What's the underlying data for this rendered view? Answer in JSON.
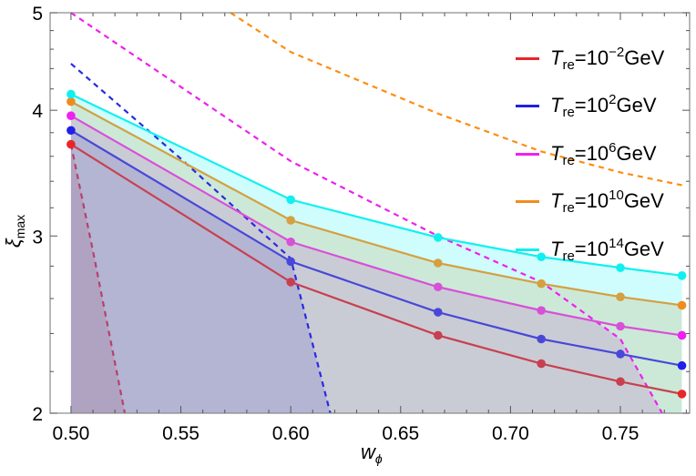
{
  "chart_data": {
    "type": "line",
    "xlabel": {
      "main": "w",
      "sub": "ϕ"
    },
    "ylabel": {
      "main": "ξ",
      "sub": "max"
    },
    "xlim": [
      0.4905,
      0.7815
    ],
    "ylim": [
      2,
      5
    ],
    "y_scale": "log",
    "grid": false,
    "legend_position": "top-right",
    "x_ticks": [
      "0.50",
      "0.55",
      "0.60",
      "0.65",
      "0.70",
      "0.75"
    ],
    "y_ticks": [
      "2",
      "3",
      "4",
      "5"
    ],
    "x": [
      0.5,
      0.6,
      0.667,
      0.714,
      0.75,
      0.778
    ],
    "series": [
      {
        "name": "T_re=10^-2 GeV",
        "label": {
          "t": "T",
          "sub": "re",
          "eq": "=10",
          "exp": "−2",
          "unit": "GeV"
        },
        "color": "#e8262a",
        "line_color": "#c8404f",
        "dash_color": "#b8406a",
        "values": [
          3.7,
          2.7,
          2.39,
          2.24,
          2.15,
          2.09
        ],
        "bound": {
          "x": [
            0.5,
            0.5104,
            0.5245
          ],
          "y": [
            3.7,
            2.87,
            2.0
          ]
        }
      },
      {
        "name": "T_re=10^2 GeV",
        "label": {
          "t": "T",
          "sub": "re",
          "eq": "=10",
          "exp": "2",
          "unit": "GeV"
        },
        "color": "#2020e8",
        "line_color": "#4848d8",
        "dash_color": "#2a2ae0",
        "values": [
          3.82,
          2.83,
          2.52,
          2.37,
          2.29,
          2.23
        ],
        "bound": {
          "x": [
            0.5,
            0.55,
            0.6,
            0.618
          ],
          "y": [
            4.45,
            3.58,
            2.85,
            2.0
          ]
        }
      },
      {
        "name": "T_re=10^6 GeV",
        "label": {
          "t": "T",
          "sub": "re",
          "eq": "=10",
          "exp": "6",
          "unit": "GeV"
        },
        "color": "#f020f0",
        "line_color": "#d850d8",
        "dash_color": "#ee20ee",
        "values": [
          3.95,
          2.96,
          2.67,
          2.53,
          2.44,
          2.39
        ],
        "bound": {
          "x": [
            0.5,
            0.6,
            0.667,
            0.714,
            0.75,
            0.769
          ],
          "y": [
            5.0,
            3.56,
            3.0,
            2.7,
            2.37,
            2.0
          ]
        }
      },
      {
        "name": "T_re=10^10 GeV",
        "label": {
          "t": "T",
          "sub": "re",
          "eq": "=10",
          "exp": "10",
          "unit": "GeV"
        },
        "color": "#f08c1e",
        "line_color": "#d4a040",
        "dash_color": "#ff8c10",
        "values": [
          4.08,
          3.11,
          2.82,
          2.69,
          2.61,
          2.56
        ],
        "bound": {
          "x": [
            0.5726,
            0.6,
            0.667,
            0.714,
            0.75,
            0.778
          ],
          "y": [
            5.0,
            4.57,
            3.97,
            3.64,
            3.47,
            3.37
          ]
        }
      },
      {
        "name": "T_re=10^14 GeV",
        "label": {
          "t": "T",
          "sub": "re",
          "eq": "=10",
          "exp": "14",
          "unit": "GeV"
        },
        "color": "#10f0f0",
        "line_color": "#10f0f0",
        "dash_color": null,
        "values": [
          4.15,
          3.26,
          2.99,
          2.86,
          2.79,
          2.74
        ],
        "bound": null
      }
    ]
  }
}
